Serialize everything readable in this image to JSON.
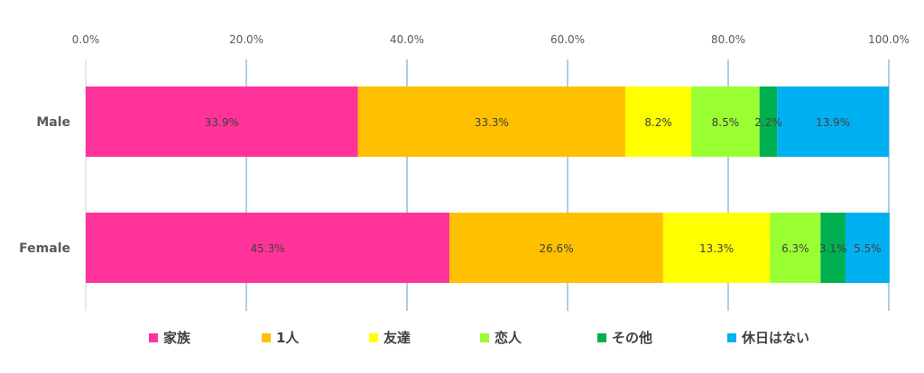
{
  "chart_data": {
    "type": "bar",
    "orientation": "horizontal",
    "stacked": true,
    "percent": true,
    "categories": [
      "Male",
      "Female"
    ],
    "series": [
      {
        "name": "家族",
        "color": "#FF3399",
        "values": [
          33.9,
          45.3
        ],
        "labels": [
          "33.9%",
          "45.3%"
        ]
      },
      {
        "name": "1人",
        "color": "#FFC000",
        "values": [
          33.3,
          26.6
        ],
        "labels": [
          "33.3%",
          "26.6%"
        ]
      },
      {
        "name": "友達",
        "color": "#FFFF00",
        "values": [
          8.2,
          13.3
        ],
        "labels": [
          "8.2%",
          "13.3%"
        ]
      },
      {
        "name": "恋人",
        "color": "#99FF33",
        "values": [
          8.5,
          6.3
        ],
        "labels": [
          "8.5%",
          "6.3%"
        ]
      },
      {
        "name": "その他",
        "color": "#00B050",
        "values": [
          2.2,
          3.1
        ],
        "labels": [
          "2.2%",
          "3.1%"
        ]
      },
      {
        "name": "休日はない",
        "color": "#00B0F0",
        "values": [
          13.9,
          5.5
        ],
        "labels": [
          "13.9%",
          "5.5%"
        ]
      }
    ],
    "xlim": [
      0,
      100
    ],
    "xticks": [
      "0.0%",
      "20.0%",
      "40.0%",
      "60.0%",
      "80.0%",
      "100.0%"
    ],
    "grid": true,
    "legend": "bottom",
    "axis_position": "top"
  }
}
